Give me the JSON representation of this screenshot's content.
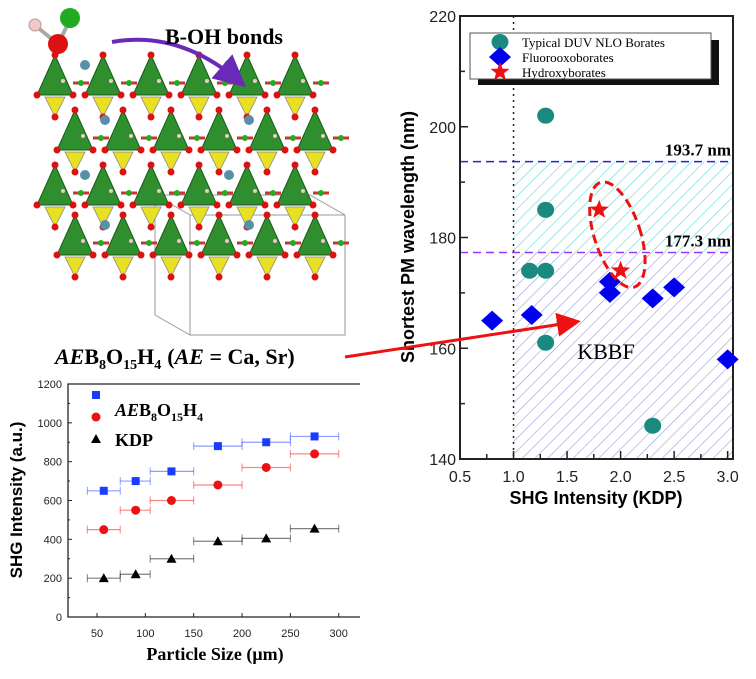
{
  "structure": {
    "bond_label": "B-OH bonds",
    "formula_label": {
      "ae": "AE",
      "b": "B",
      "b_sub": "8",
      "o": "O",
      "o_sub": "15",
      "h": "H",
      "h_sub": "4",
      "paren": "(",
      "ae2": "AE",
      "rest": " = Ca, Sr)"
    }
  },
  "colors": {
    "teal": "#1a8a80",
    "blue": "#0000ee",
    "red": "#ee1111",
    "cyan_hatch": "#5fd8d8",
    "purple_hatch": "#9a9ae0",
    "purple_line": "#9933ff",
    "green_tetra": "#2f8f2f",
    "yellow_tri": "#e8e020"
  },
  "chart_data": [
    {
      "type": "scatter",
      "title": "",
      "xlabel": "Particle Size (μm)",
      "ylabel": "SHG Intensity (a.u.)",
      "xlim": [
        20,
        322
      ],
      "ylim": [
        0,
        1200
      ],
      "xticks": [
        "50",
        "100",
        "150",
        "200",
        "250",
        "300"
      ],
      "yticks": [
        "0",
        "200",
        "400",
        "600",
        "800",
        "1000",
        "1200"
      ],
      "legend_placement": "top-left",
      "x": [
        57,
        90,
        127,
        175,
        225,
        275
      ],
      "x_error_ranges": [
        [
          40,
          74
        ],
        [
          74,
          105
        ],
        [
          105,
          150
        ],
        [
          150,
          200
        ],
        [
          200,
          250
        ],
        [
          250,
          300
        ]
      ],
      "series": [
        {
          "name": "AEB8O15H4",
          "legend": {
            "it": "AE",
            "b": "B",
            "b_sub": "8",
            "o": "O",
            "o_sub": "15",
            "h": "H",
            "h_sub": "4"
          },
          "marker": "square",
          "color": "#1a3cff",
          "values": [
            650,
            700,
            750,
            880,
            900,
            930
          ]
        },
        {
          "name_display": "",
          "marker": "circle",
          "color": "#ee1111",
          "values": [
            450,
            550,
            600,
            680,
            770,
            840
          ]
        },
        {
          "name": "KDP",
          "marker": "triangle",
          "color": "#000000",
          "values": [
            200,
            220,
            300,
            390,
            405,
            455
          ]
        }
      ]
    },
    {
      "type": "scatter",
      "title": "",
      "xlabel": "SHG Intensity (KDP)",
      "ylabel": "Shortest PM wavelength (nm)",
      "xlim": [
        0.5,
        3.05
      ],
      "ylim": [
        140,
        220
      ],
      "xticks": [
        "0.5",
        "1.0",
        "1.5",
        "2.0",
        "2.5",
        "3.0"
      ],
      "yticks": [
        "140",
        "160",
        "180",
        "200",
        "220"
      ],
      "legend_placement": "top",
      "reference_lines": [
        {
          "value": 193.7,
          "label": "193.7 nm",
          "color": "#2222dd"
        },
        {
          "value": 177.3,
          "label": "177.3 nm",
          "color": "#9933ff"
        }
      ],
      "vertical_line": 1.0,
      "region_label": "KBBF",
      "series": [
        {
          "name": "Typical DUV NLO Borates",
          "marker": "circle",
          "color": "#1a8a80",
          "points": [
            [
              1.3,
              202
            ],
            [
              1.3,
              185
            ],
            [
              1.15,
              174
            ],
            [
              1.3,
              174
            ],
            [
              1.3,
              161
            ],
            [
              2.3,
              146
            ]
          ]
        },
        {
          "name": "Fluorooxoborates",
          "marker": "diamond",
          "color": "#0000ee",
          "points": [
            [
              0.8,
              165
            ],
            [
              1.17,
              166
            ],
            [
              1.9,
              172
            ],
            [
              1.9,
              170
            ],
            [
              2.3,
              169
            ],
            [
              2.5,
              171
            ],
            [
              3.0,
              158
            ]
          ]
        },
        {
          "name": "Hydroxyborates",
          "marker": "star",
          "color": "#ee1111",
          "points": [
            [
              1.8,
              185
            ],
            [
              2.0,
              174
            ]
          ]
        }
      ]
    }
  ]
}
